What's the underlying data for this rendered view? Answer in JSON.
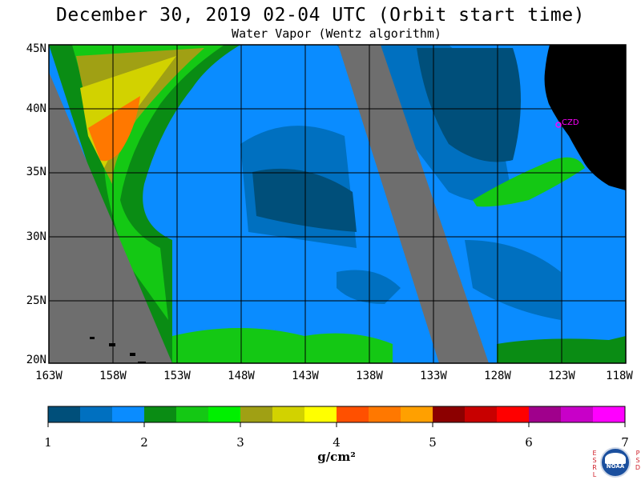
{
  "title": "December 30, 2019  02-04 UTC  (Orbit start time)",
  "subtitle": "Water Vapor (Wentz algorithm)",
  "map": {
    "lat_labels": [
      "45N",
      "40N",
      "35N",
      "30N",
      "25N",
      "20N"
    ],
    "lon_labels": [
      "163W",
      "158W",
      "153W",
      "148W",
      "143W",
      "138W",
      "133W",
      "128W",
      "123W",
      "118W"
    ],
    "station_label": "CZD",
    "station_color": "#ff00ff",
    "land_color": "#000000",
    "no_data_color": "#6e6e6e"
  },
  "colorbar": {
    "tick_labels": [
      "1",
      "2",
      "3",
      "4",
      "5",
      "6",
      "7"
    ],
    "units": "g/cm²",
    "colors": [
      "#004f7a",
      "#0070c0",
      "#0a8cff",
      "#0a8c14",
      "#14c814",
      "#00f000",
      "#a0a014",
      "#d2d200",
      "#ffff00",
      "#ff5000",
      "#ff7800",
      "#ffa000",
      "#8c0000",
      "#c80000",
      "#ff0000",
      "#a0008c",
      "#c800c8",
      "#ff00ff"
    ]
  },
  "logos": {
    "left_letters": "ESRL",
    "right_letters": "PSD",
    "noaa_text": "NOAA"
  }
}
